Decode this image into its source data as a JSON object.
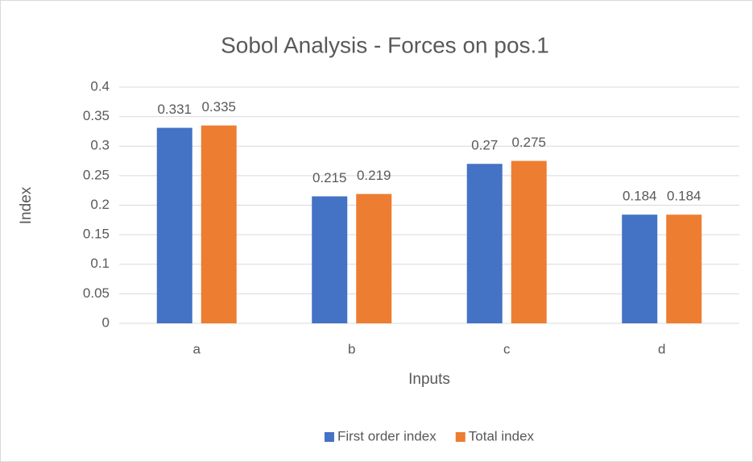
{
  "chart_data": {
    "type": "bar",
    "title": "Sobol Analysis - Forces on pos.1",
    "x_label": "Inputs",
    "y_label": "Index",
    "categories": [
      "a",
      "b",
      "c",
      "d"
    ],
    "series": [
      {
        "name": "First order index",
        "color": "#4472c4",
        "values": [
          0.331,
          0.215,
          0.27,
          0.184
        ]
      },
      {
        "name": "Total index",
        "color": "#ed7d31",
        "values": [
          0.335,
          0.219,
          0.275,
          0.184
        ]
      }
    ],
    "ylim": [
      0,
      0.4
    ],
    "yticks": [
      0,
      0.05,
      0.1,
      0.15,
      0.2,
      0.25,
      0.3,
      0.35,
      0.4
    ],
    "grid": true,
    "legend": "bottom",
    "data_labels": true
  }
}
